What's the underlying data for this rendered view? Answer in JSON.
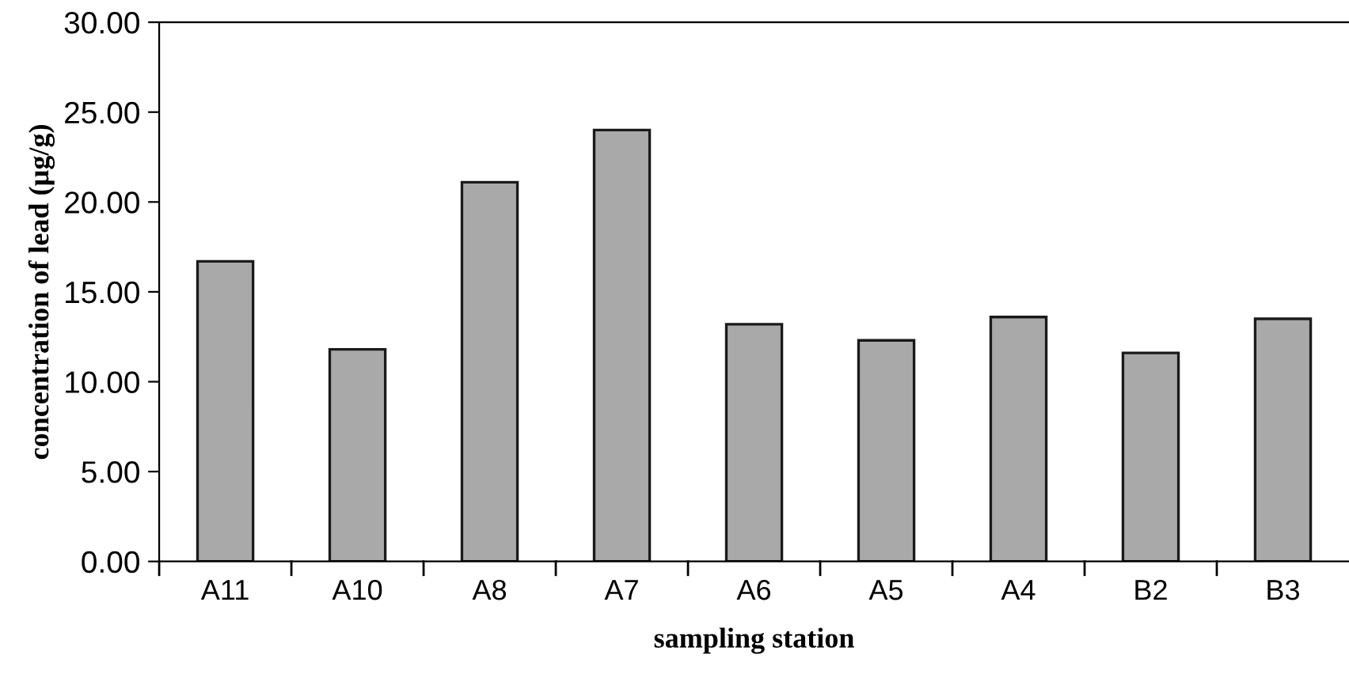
{
  "chart_data": {
    "type": "bar",
    "xlabel": "sampling station",
    "ylabel": "concentration of lead (µg/g)",
    "categories": [
      "A11",
      "A10",
      "A8",
      "A7",
      "A6",
      "A5",
      "A4",
      "B2",
      "B3"
    ],
    "values": [
      16.7,
      11.8,
      21.1,
      24.0,
      13.2,
      12.3,
      13.6,
      11.6,
      13.5
    ],
    "color": "#a9a9a9",
    "ylim": [
      0,
      30
    ],
    "yticks": [
      {
        "value": 0,
        "label": "0.00"
      },
      {
        "value": 5,
        "label": "5.00"
      },
      {
        "value": 10,
        "label": "10.00"
      },
      {
        "value": 15,
        "label": "15.00"
      },
      {
        "value": 20,
        "label": "20.00"
      },
      {
        "value": 25,
        "label": "25.00"
      },
      {
        "value": 30,
        "label": "30.00"
      }
    ],
    "grid": false
  }
}
